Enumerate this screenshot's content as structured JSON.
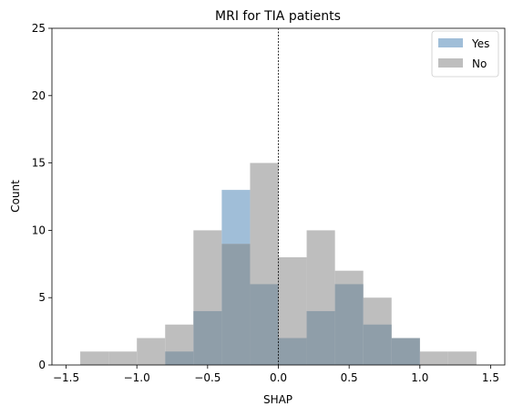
{
  "chart_data": {
    "type": "bar",
    "title": "MRI for TIA patients",
    "xlabel": "SHAP",
    "ylabel": "Count",
    "xlim": [
      -1.6,
      1.6
    ],
    "ylim": [
      0,
      25
    ],
    "x_ticks": [
      -1.5,
      -1.0,
      -0.5,
      0.0,
      0.5,
      1.0,
      1.5
    ],
    "x_tick_labels": [
      "−1.5",
      "−1.0",
      "−0.5",
      "0.0",
      "0.5",
      "1.0",
      "1.5"
    ],
    "y_ticks": [
      0,
      5,
      10,
      15,
      20,
      25
    ],
    "y_tick_labels": [
      "0",
      "5",
      "10",
      "15",
      "20",
      "25"
    ],
    "bin_width": 0.2,
    "reference_line_x": 0.0,
    "legend_position": "top-right",
    "grid": false,
    "series": [
      {
        "name": "No",
        "color": "#bebebe",
        "bins": [
          {
            "x0": -1.4,
            "x1": -1.2,
            "count": 1
          },
          {
            "x0": -1.2,
            "x1": -1.0,
            "count": 1
          },
          {
            "x0": -1.0,
            "x1": -0.8,
            "count": 2
          },
          {
            "x0": -0.8,
            "x1": -0.6,
            "count": 3
          },
          {
            "x0": -0.6,
            "x1": -0.4,
            "count": 10
          },
          {
            "x0": -0.4,
            "x1": -0.2,
            "count": 9
          },
          {
            "x0": -0.2,
            "x1": 0.0,
            "count": 15
          },
          {
            "x0": 0.0,
            "x1": 0.2,
            "count": 8
          },
          {
            "x0": 0.2,
            "x1": 0.4,
            "count": 10
          },
          {
            "x0": 0.4,
            "x1": 0.6,
            "count": 7
          },
          {
            "x0": 0.6,
            "x1": 0.8,
            "count": 5
          },
          {
            "x0": 0.8,
            "x1": 1.0,
            "count": 2
          },
          {
            "x0": 1.0,
            "x1": 1.2,
            "count": 1
          },
          {
            "x0": 1.2,
            "x1": 1.4,
            "count": 1
          }
        ]
      },
      {
        "name": "Yes",
        "color": "#a0bed8",
        "bins": [
          {
            "x0": -0.8,
            "x1": -0.6,
            "count": 1
          },
          {
            "x0": -0.6,
            "x1": -0.4,
            "count": 4
          },
          {
            "x0": -0.4,
            "x1": -0.2,
            "count": 13
          },
          {
            "x0": -0.2,
            "x1": 0.0,
            "count": 6
          },
          {
            "x0": 0.0,
            "x1": 0.2,
            "count": 2
          },
          {
            "x0": 0.2,
            "x1": 0.4,
            "count": 4
          },
          {
            "x0": 0.4,
            "x1": 0.6,
            "count": 6
          },
          {
            "x0": 0.6,
            "x1": 0.8,
            "count": 3
          },
          {
            "x0": 0.8,
            "x1": 1.0,
            "count": 2
          }
        ]
      }
    ],
    "overlap_color": "#8f9ea9"
  }
}
